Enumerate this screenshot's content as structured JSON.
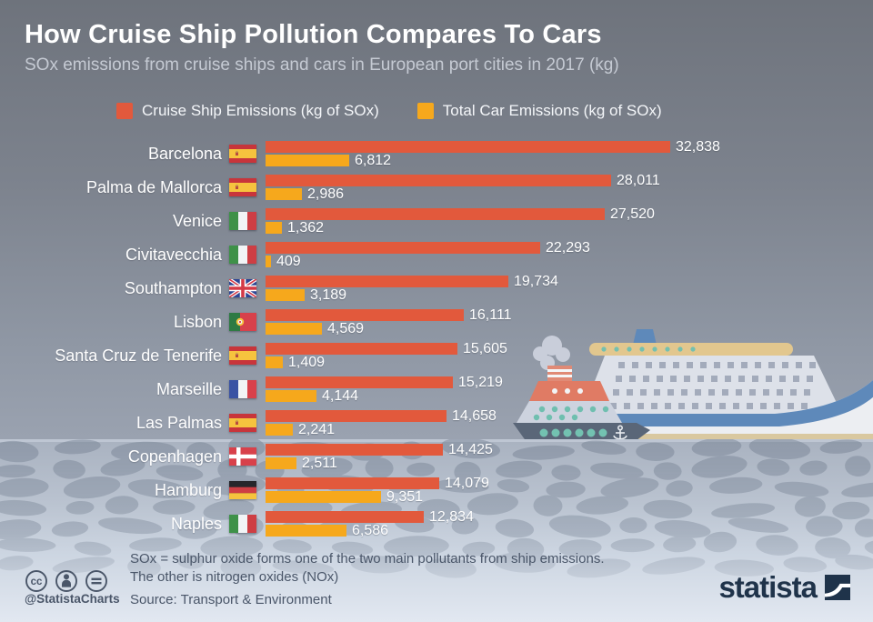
{
  "header": {
    "title": "How Cruise Ship Pollution Compares To Cars",
    "subtitle": "SOx emissions from cruise ships and cars in European port cities in 2017 (kg)"
  },
  "legend": {
    "cruise_label": "Cruise Ship Emissions (kg of SOx)",
    "car_label": "Total Car Emissions (kg of SOx)"
  },
  "colors": {
    "cruise_bar": "#E2593C",
    "car_bar": "#F6A81C",
    "background_top": "#6E737C",
    "background_bottom": "#A2AAB8",
    "water_blob": "#6E7A8C",
    "footer_text": "#4A5669",
    "logo_navy": "#1F334A",
    "value_text": "#FFFFFF"
  },
  "chart_data": {
    "type": "bar",
    "orientation": "horizontal",
    "title": "How Cruise Ship Pollution Compares To Cars",
    "subtitle": "SOx emissions from cruise ships and cars in European port cities in 2017 (kg)",
    "unit": "kg of SOx",
    "value_labels": true,
    "grid": false,
    "xlim": [
      0,
      32838
    ],
    "categories": [
      "Barcelona",
      "Palma de Mallorca",
      "Venice",
      "Civitavecchia",
      "Southampton",
      "Lisbon",
      "Santa Cruz de Tenerife",
      "Marseille",
      "Las Palmas",
      "Copenhagen",
      "Hamburg",
      "Naples"
    ],
    "country_flags": [
      "spain-flag",
      "spain-flag",
      "italy-flag",
      "italy-flag",
      "uk-flag",
      "portugal-flag",
      "spain-flag",
      "france-flag",
      "spain-flag",
      "denmark-flag",
      "germany-flag",
      "italy-flag"
    ],
    "series": [
      {
        "name": "Cruise Ship Emissions (kg of SOx)",
        "values": [
          32838,
          28011,
          27520,
          22293,
          19734,
          16111,
          15605,
          15219,
          14658,
          14425,
          14079,
          12834
        ]
      },
      {
        "name": "Total Car Emissions (kg of SOx)",
        "values": [
          6812,
          2986,
          1362,
          409,
          3189,
          4569,
          1409,
          4144,
          2241,
          2511,
          9351,
          6586
        ]
      }
    ]
  },
  "footer": {
    "handle": "@StatistaCharts",
    "note_line1": "SOx = sulphur oxide forms one of the two main pollutants from ship emissions.",
    "note_line2": "The other is nitrogen oxides (NOx)",
    "source": "Source: Transport & Environment",
    "logo_text": "statista"
  }
}
